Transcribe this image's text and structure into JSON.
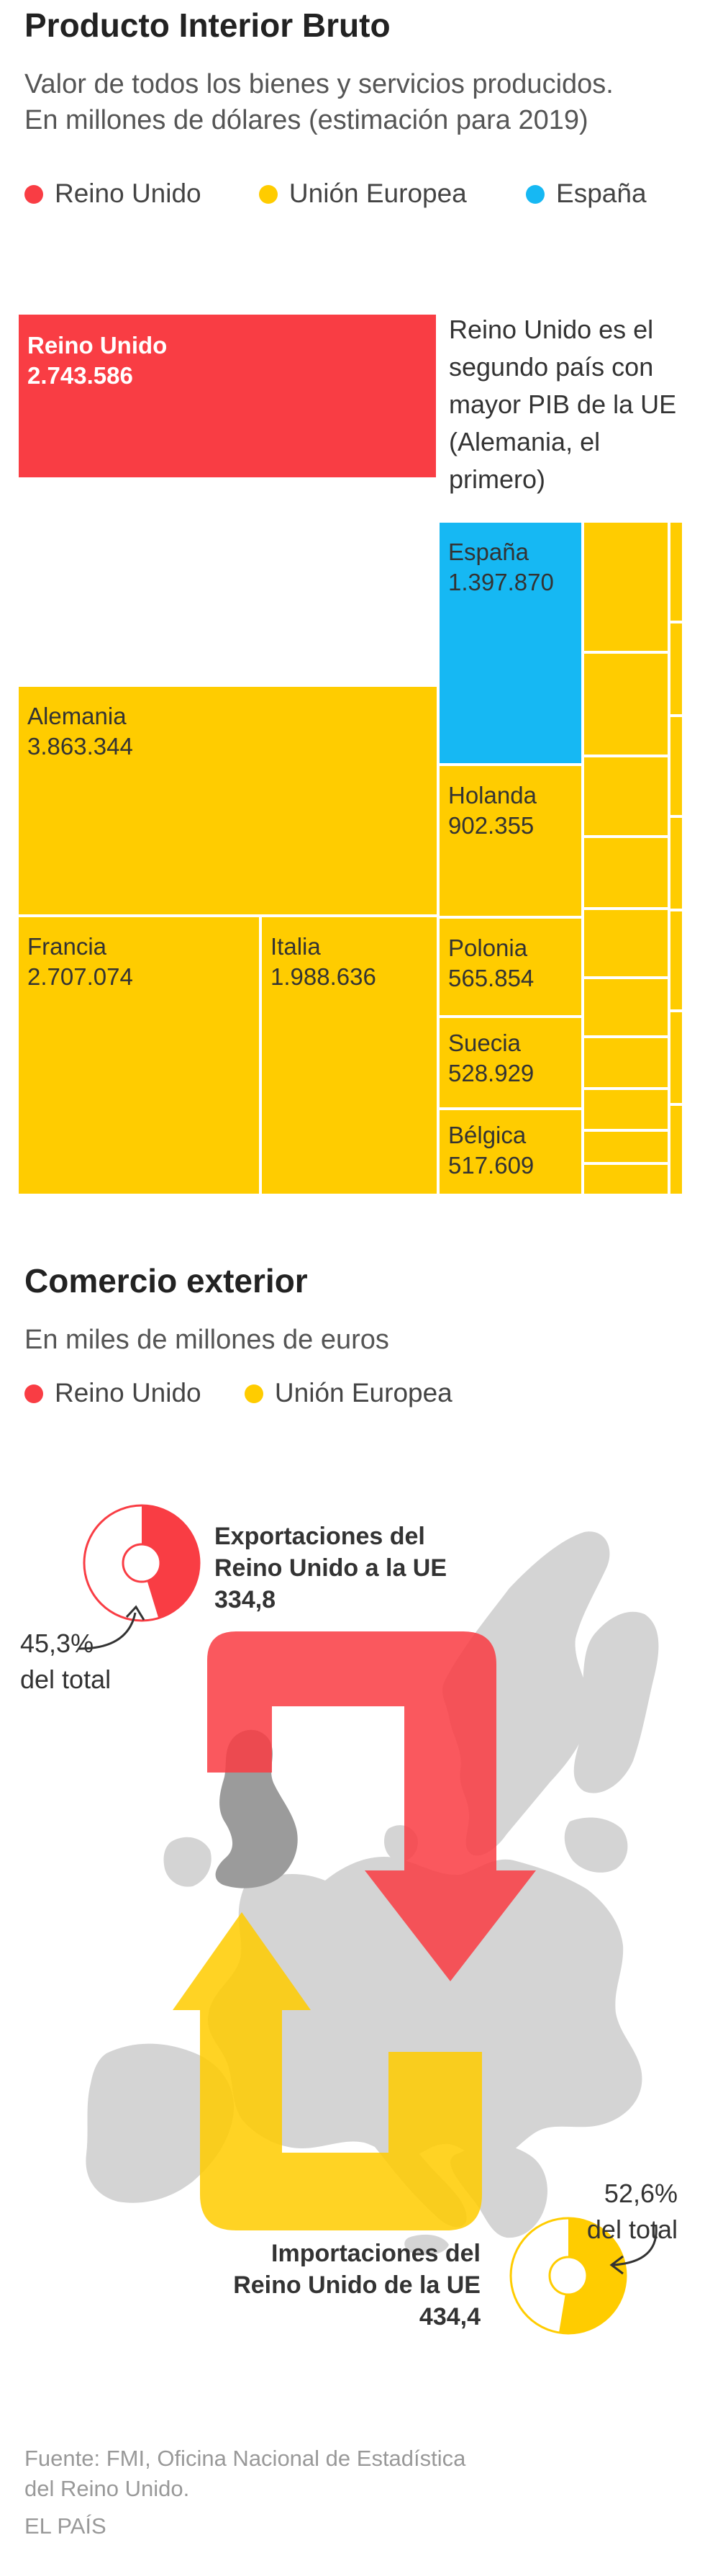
{
  "section1": {
    "title": "Producto Interior Bruto",
    "subtitle_line1": "Valor de todos los bienes y servicios producidos.",
    "subtitle_line2": "En millones de dólares (estimación para 2019)",
    "legend": [
      {
        "label": "Reino Unido",
        "color": "#f93d44"
      },
      {
        "label": "Unión Europea",
        "color": "#ffcc00"
      },
      {
        "label": "España",
        "color": "#16b8f3"
      }
    ],
    "uk_note": [
      "Reino Unido es el",
      "segundo país con",
      "mayor PIB de la UE",
      "(Alemania, el",
      "primero)"
    ]
  },
  "chart_data": [
    {
      "type": "treemap",
      "title": "Producto Interior Bruto",
      "unit": "millones de dólares",
      "uk": {
        "name": "Reino Unido",
        "value": "2.743.586",
        "color": "#f93d44"
      },
      "eu": [
        {
          "name": "Alemania",
          "value": "3.863.344",
          "color": "#ffcc00"
        },
        {
          "name": "Francia",
          "value": "2.707.074",
          "color": "#ffcc00"
        },
        {
          "name": "Italia",
          "value": "1.988.636",
          "color": "#ffcc00"
        },
        {
          "name": "España",
          "value": "1.397.870",
          "color": "#16b8f3"
        },
        {
          "name": "Holanda",
          "value": "902.355",
          "color": "#ffcc00"
        },
        {
          "name": "Polonia",
          "value": "565.854",
          "color": "#ffcc00"
        },
        {
          "name": "Suecia",
          "value": "528.929",
          "color": "#ffcc00"
        },
        {
          "name": "Bélgica",
          "value": "517.609",
          "color": "#ffcc00"
        }
      ]
    },
    {
      "type": "pie",
      "title": "Exportaciones del Reino Unido a la UE",
      "value": "334,8",
      "share_label": "45,3%",
      "share": 45.3,
      "color": "#f93d44"
    },
    {
      "type": "pie",
      "title": "Importaciones del Reino Unido de la UE",
      "value": "434,4",
      "share_label": "52,6%",
      "share": 52.6,
      "color": "#ffcc00"
    }
  ],
  "section2": {
    "title": "Comercio exterior",
    "subtitle": "En miles de millones de euros",
    "legend": [
      {
        "label": "Reino Unido",
        "color": "#f93d44"
      },
      {
        "label": "Unión Europea",
        "color": "#ffcc00"
      }
    ],
    "exports": {
      "title_line1": "Exportaciones del",
      "title_line2": "Reino Unido a la UE",
      "value": "334,8",
      "pct": "45,3%",
      "pct_suffix": "del total"
    },
    "imports": {
      "title_line1": "Importaciones del",
      "title_line2": "Reino Unido de la UE",
      "value": "434,4",
      "pct": "52,6%",
      "pct_suffix": "del total"
    }
  },
  "footer": {
    "source_line1": "Fuente: FMI, Oficina Nacional de Estadística",
    "source_line2": "del Reino Unido.",
    "brand": "EL PAÍS"
  }
}
